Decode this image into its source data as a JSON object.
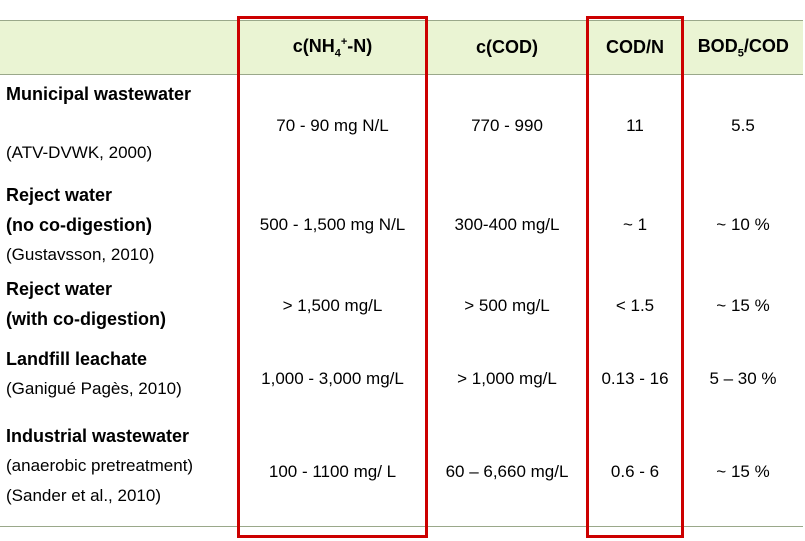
{
  "table": {
    "headers": [
      {
        "text": "",
        "sub": "",
        "sup": "",
        "suffix": ""
      },
      {
        "text": "c(NH",
        "sub": "4",
        "sup": "+",
        "suffix": "-N)"
      },
      {
        "text": "c(COD)",
        "sub": "",
        "sup": "",
        "suffix": ""
      },
      {
        "text": "COD/N",
        "sub": "",
        "sup": "",
        "suffix": ""
      },
      {
        "text": "BOD",
        "sub": "5",
        "sup": "",
        "suffix": "/COD"
      }
    ],
    "rows": [
      {
        "name_lines": [
          "Municipal wastewater"
        ],
        "ref_lines": [
          "(ATV-DVWK, 2000)"
        ],
        "nh4": "70 - 90 mg N/L",
        "cod": "770 - 990",
        "cod_n": "11",
        "bod_cod": "5.5"
      },
      {
        "name_lines": [
          "Reject water",
          "(no co-digestion)"
        ],
        "ref_lines": [
          "(Gustavsson, 2010)"
        ],
        "nh4": "500 - 1,500 mg N/L",
        "cod": "300-400 mg/L",
        "cod_n": "~ 1",
        "bod_cod": "~ 10 %"
      },
      {
        "name_lines": [
          "Reject water",
          "(with co-digestion)"
        ],
        "ref_lines": [],
        "nh4": "> 1,500 mg/L",
        "cod": "> 500 mg/L",
        "cod_n": "< 1.5",
        "bod_cod": "~ 15 %"
      },
      {
        "name_lines": [
          "Landfill leachate"
        ],
        "ref_lines": [
          "(Ganigué Pagès, 2010)"
        ],
        "nh4": "1,000 - 3,000 mg/L",
        "cod": "> 1,000 mg/L",
        "cod_n": "0.13 - 16",
        "bod_cod": "5 – 30 %"
      },
      {
        "name_lines": [
          "Industrial wastewater"
        ],
        "ref_lines": [
          "(anaerobic pretreatment)",
          "(Sander et al., 2010)"
        ],
        "nh4": "100 - 1100 mg/ L",
        "cod": "60 – 6,660 mg/L",
        "cod_n": "0.6 - 6",
        "bod_cod": "~ 15 %"
      }
    ]
  },
  "highlight_color": "#cc0000",
  "header_background": "#eaf4d3"
}
